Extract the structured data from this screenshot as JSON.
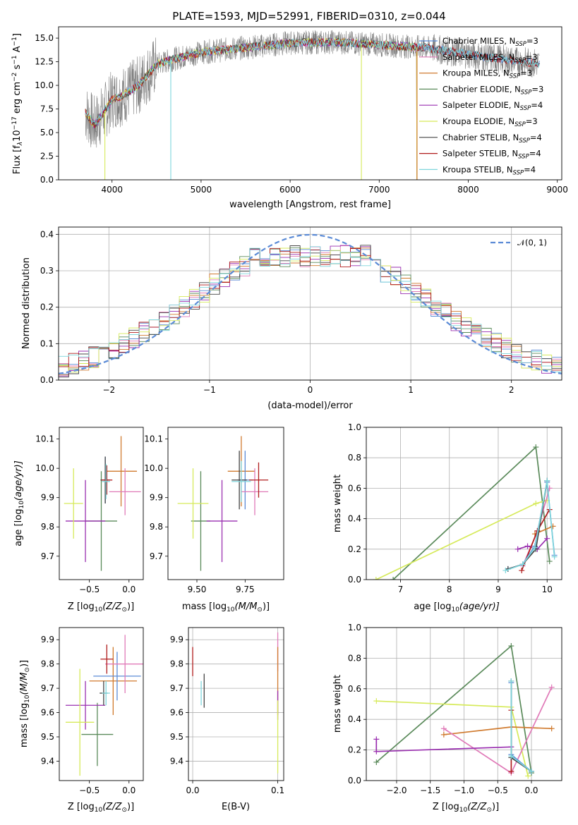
{
  "figure_title": "PLATE=1593, MJD=52991, FIBERID=0310, z=0.044",
  "colors": {
    "chabrier_miles": "#5b8bd6",
    "salpeter_miles": "#e07ab8",
    "kroupa_miles": "#d07a2e",
    "chabrier_elodie": "#5a8a5a",
    "salpeter_elodie": "#9a2fb0",
    "kroupa_elodie": "#d6ea5a",
    "chabrier_stelib": "#444444",
    "salpeter_stelib": "#b01c1c",
    "kroupa_stelib": "#7fd6dc",
    "data_grey": "#808080",
    "gauss": "#5b8bd6"
  },
  "chart_data": [
    {
      "id": "spectrum",
      "type": "line",
      "ylabel_main": "Flux [f",
      "ylabel_sub": "λ",
      "ylabel_mid": "10",
      "ylabel_sup1": "−17",
      "ylabel_rest": " erg cm",
      "ylabel_sup2": "−2",
      "ylabel_s": " s",
      "ylabel_sup3": "−1",
      "ylabel_a": " A",
      "ylabel_sup4": "−1",
      "ylabel_end": "]",
      "xlabel": "wavelength [Angstrom, rest frame]",
      "xlim": [
        3400,
        9050
      ],
      "ylim": [
        0,
        16.2
      ],
      "xticks": [
        "4000",
        "5000",
        "6000",
        "7000",
        "8000",
        "9000"
      ],
      "xtick_values": [
        4000,
        5000,
        6000,
        7000,
        8000,
        9000
      ],
      "yticks": [
        "0.0",
        "2.5",
        "5.0",
        "7.5",
        "10.0",
        "12.5",
        "15.0"
      ],
      "ytick_values": [
        0,
        2.5,
        5,
        7.5,
        10,
        12.5,
        15
      ],
      "continuum": [
        [
          3700,
          7.2
        ],
        [
          3800,
          5.8
        ],
        [
          3900,
          7.0
        ],
        [
          4000,
          8.5
        ],
        [
          4100,
          8.8
        ],
        [
          4300,
          10.0
        ],
        [
          4500,
          12.2
        ],
        [
          4700,
          12.8
        ],
        [
          5000,
          13.5
        ],
        [
          5500,
          14.0
        ],
        [
          6000,
          14.5
        ],
        [
          6500,
          14.6
        ],
        [
          7000,
          14.3
        ],
        [
          7500,
          14.0
        ],
        [
          7800,
          13.6
        ],
        [
          8200,
          13.0
        ],
        [
          8500,
          12.6
        ],
        [
          8800,
          12.3
        ]
      ],
      "series": [
        {
          "name": "Chabrier MILES, N",
          "sub": "SSP",
          "suffix": "=3",
          "key": "chabrier_miles"
        },
        {
          "name": "Salpeter MILES, N",
          "sub": "SSP",
          "suffix": "=3",
          "key": "salpeter_miles"
        },
        {
          "name": "Kroupa MILES, N",
          "sub": "SSP",
          "suffix": "=3",
          "key": "kroupa_miles"
        },
        {
          "name": "Chabrier ELODIE, N",
          "sub": "SSP",
          "suffix": "=3",
          "key": "chabrier_elodie"
        },
        {
          "name": "Salpeter ELODIE, N",
          "sub": "SSP",
          "suffix": "=4",
          "key": "salpeter_elodie"
        },
        {
          "name": "Kroupa ELODIE, N",
          "sub": "SSP",
          "suffix": "=3",
          "key": "kroupa_elodie"
        },
        {
          "name": "Chabrier STELIB, N",
          "sub": "SSP",
          "suffix": "=4",
          "key": "chabrier_stelib"
        },
        {
          "name": "Salpeter STELIB, N",
          "sub": "SSP",
          "suffix": "=4",
          "key": "salpeter_stelib"
        },
        {
          "name": "Kroupa STELIB, N",
          "sub": "SSP",
          "suffix": "=4",
          "key": "kroupa_stelib"
        }
      ],
      "legend_position": "upper-right"
    },
    {
      "id": "residuals",
      "type": "step-histogram",
      "xlabel": "(data-model)/error",
      "ylabel": "Normed distribution",
      "xlim": [
        -2.5,
        2.5
      ],
      "ylim": [
        0,
        0.42
      ],
      "xticks": [
        "−2",
        "−1",
        "0",
        "1",
        "2"
      ],
      "xtick_values": [
        -2,
        -1,
        0,
        1,
        2
      ],
      "yticks": [
        "0.0",
        "0.1",
        "0.2",
        "0.3",
        "0.4"
      ],
      "ytick_values": [
        0,
        0.1,
        0.2,
        0.3,
        0.4
      ],
      "bin_width": 0.1,
      "bin_start": -2.5,
      "grid": true,
      "legend_label": "𝒩(0, 1)",
      "legend_position": "upper-right"
    },
    {
      "id": "age_vs_Z",
      "type": "errorbar",
      "xlabel": "Z [log",
      "xlabel_sub": "10",
      "xlabel_rest": "(Z/Z",
      "xlabel_sub2": "⊙",
      "xlabel_end": ")]",
      "ylabel": "age  [log",
      "ylabel_sub": "10",
      "ylabel_rest": "(age/yr)]",
      "xlim": [
        -0.88,
        0.18
      ],
      "ylim": [
        9.62,
        10.14
      ],
      "xticks": [
        "−0.5",
        "0.0"
      ],
      "xtick_values": [
        -0.5,
        0
      ],
      "yticks": [
        "9.7",
        "9.8",
        "9.9",
        "10.0",
        "10.1"
      ],
      "ytick_values": [
        9.7,
        9.8,
        9.9,
        10.0,
        10.1
      ],
      "points": [
        {
          "key": "kroupa_miles",
          "x": -0.1,
          "y": 9.99,
          "xerr": 0.2,
          "yerr": 0.12
        },
        {
          "key": "chabrier_miles",
          "x": -0.3,
          "y": 9.96,
          "xerr": 0.05,
          "yerr": 0.08
        },
        {
          "key": "salpeter_miles",
          "x": -0.05,
          "y": 9.92,
          "xerr": 0.2,
          "yerr": 0.08
        },
        {
          "key": "chabrier_elodie",
          "x": -0.35,
          "y": 9.82,
          "xerr": 0.2,
          "yerr": 0.17
        },
        {
          "key": "salpeter_elodie",
          "x": -0.55,
          "y": 9.82,
          "xerr": 0.25,
          "yerr": 0.14
        },
        {
          "key": "kroupa_elodie",
          "x": -0.7,
          "y": 9.88,
          "xerr": 0.12,
          "yerr": 0.12
        },
        {
          "key": "chabrier_stelib",
          "x": -0.3,
          "y": 9.96,
          "xerr": 0.06,
          "yerr": 0.08
        },
        {
          "key": "salpeter_stelib",
          "x": -0.28,
          "y": 9.96,
          "xerr": 0.07,
          "yerr": 0.05
        },
        {
          "key": "kroupa_stelib",
          "x": -0.29,
          "y": 9.955,
          "xerr": 0.05,
          "yerr": 0.06
        }
      ]
    },
    {
      "id": "age_vs_mass",
      "type": "errorbar",
      "xlabel": "mass [log",
      "xlabel_sub": "10",
      "xlabel_rest": "(M/M",
      "xlabel_sub2": "⊙",
      "xlabel_end": ")]",
      "xlim": [
        9.35,
        9.95
      ],
      "ylim": [
        9.62,
        10.14
      ],
      "xticks": [
        "9.50",
        "9.75"
      ],
      "xtick_values": [
        9.5,
        9.75
      ],
      "yticks": [
        "9.7",
        "9.8",
        "9.9",
        "10.0",
        "10.1"
      ],
      "ytick_values": [
        9.7,
        9.8,
        9.9,
        10.0,
        10.1
      ],
      "points": [
        {
          "key": "kroupa_miles",
          "x": 9.73,
          "y": 9.99,
          "xerr": 0.07,
          "yerr": 0.12
        },
        {
          "key": "chabrier_miles",
          "x": 9.75,
          "y": 9.96,
          "xerr": 0.04,
          "yerr": 0.1
        },
        {
          "key": "salpeter_miles",
          "x": 9.8,
          "y": 9.92,
          "xerr": 0.07,
          "yerr": 0.08
        },
        {
          "key": "chabrier_elodie",
          "x": 9.52,
          "y": 9.82,
          "xerr": 0.05,
          "yerr": 0.17
        },
        {
          "key": "salpeter_elodie",
          "x": 9.63,
          "y": 9.82,
          "xerr": 0.08,
          "yerr": 0.14
        },
        {
          "key": "kroupa_elodie",
          "x": 9.48,
          "y": 9.88,
          "xerr": 0.08,
          "yerr": 0.12
        },
        {
          "key": "chabrier_stelib",
          "x": 9.72,
          "y": 9.96,
          "xerr": 0.04,
          "yerr": 0.1
        },
        {
          "key": "salpeter_stelib",
          "x": 9.82,
          "y": 9.96,
          "xerr": 0.05,
          "yerr": 0.06
        },
        {
          "key": "kroupa_stelib",
          "x": 9.73,
          "y": 9.955,
          "xerr": 0.05,
          "yerr": 0.07
        }
      ]
    },
    {
      "id": "weight_vs_age",
      "type": "line",
      "xlabel": "age  [log",
      "xlabel_sub": "10",
      "xlabel_rest": "(age/yr)]",
      "ylabel": "mass weight",
      "xlim": [
        6.3,
        10.3
      ],
      "ylim": [
        0,
        1.0
      ],
      "xticks": [
        "7",
        "8",
        "9",
        "10"
      ],
      "xtick_values": [
        7,
        8,
        9,
        10
      ],
      "yticks": [
        "0.0",
        "0.2",
        "0.4",
        "0.6",
        "0.8",
        "1.0"
      ],
      "ytick_values": [
        0,
        0.2,
        0.4,
        0.6,
        0.8,
        1.0
      ],
      "grid": true,
      "series": [
        {
          "key": "chabrier_elodie",
          "x": [
            6.85,
            9.77,
            10.05
          ],
          "y": [
            0.0,
            0.87,
            0.12
          ]
        },
        {
          "key": "kroupa_elodie",
          "x": [
            6.5,
            9.77,
            10.0
          ],
          "y": [
            0.0,
            0.5,
            0.52
          ]
        },
        {
          "key": "salpeter_miles",
          "x": [
            9.5,
            9.78,
            10.05
          ],
          "y": [
            0.09,
            0.3,
            0.6
          ]
        },
        {
          "key": "kroupa_miles",
          "x": [
            9.75,
            10.12
          ],
          "y": [
            0.3,
            0.35
          ]
        },
        {
          "key": "salpeter_elodie",
          "x": [
            9.4,
            9.6,
            9.8,
            10.0
          ],
          "y": [
            0.2,
            0.22,
            0.2,
            0.27
          ]
        },
        {
          "key": "salpeter_stelib",
          "x": [
            9.48,
            9.8,
            10.05
          ],
          "y": [
            0.06,
            0.32,
            0.46
          ]
        },
        {
          "key": "chabrier_miles",
          "x": [
            9.2,
            9.5,
            9.75,
            10.0,
            10.15
          ],
          "y": [
            0.07,
            0.1,
            0.22,
            0.64,
            0.16
          ]
        },
        {
          "key": "chabrier_stelib",
          "x": [
            9.2,
            9.5,
            9.77,
            10.0
          ],
          "y": [
            0.07,
            0.1,
            0.2,
            0.65
          ]
        },
        {
          "key": "kroupa_stelib",
          "x": [
            9.15,
            9.5,
            9.75,
            10.0,
            10.15
          ],
          "y": [
            0.06,
            0.1,
            0.21,
            0.65,
            0.15
          ]
        }
      ]
    },
    {
      "id": "mass_vs_Z",
      "type": "errorbar",
      "xlabel": "Z [log",
      "xlabel_sub": "10",
      "xlabel_rest": "(Z/Z",
      "xlabel_sub2": "⊙",
      "xlabel_end": ")]",
      "ylabel": "mass [log",
      "ylabel_sub": "10",
      "ylabel_rest": "(M/M",
      "ylabel_sub2": "⊙",
      "ylabel_end": ")]",
      "xlim": [
        -0.88,
        0.18
      ],
      "ylim": [
        9.32,
        9.95
      ],
      "xticks": [
        "−0.5",
        "0.0"
      ],
      "xtick_values": [
        -0.5,
        0
      ],
      "yticks": [
        "9.4",
        "9.5",
        "9.6",
        "9.7",
        "9.8",
        "9.9"
      ],
      "ytick_values": [
        9.4,
        9.5,
        9.6,
        9.7,
        9.8,
        9.9
      ],
      "points": [
        {
          "key": "kroupa_miles",
          "x": -0.2,
          "y": 9.73,
          "xerr": 0.3,
          "yerr": 0.14
        },
        {
          "key": "chabrier_miles",
          "x": -0.15,
          "y": 9.75,
          "xerr": 0.3,
          "yerr": 0.1
        },
        {
          "key": "salpeter_miles",
          "x": -0.05,
          "y": 9.8,
          "xerr": 0.25,
          "yerr": 0.12
        },
        {
          "key": "chabrier_elodie",
          "x": -0.4,
          "y": 9.51,
          "xerr": 0.2,
          "yerr": 0.13
        },
        {
          "key": "salpeter_elodie",
          "x": -0.55,
          "y": 9.63,
          "xerr": 0.25,
          "yerr": 0.1
        },
        {
          "key": "kroupa_elodie",
          "x": -0.62,
          "y": 9.56,
          "xerr": 0.18,
          "yerr": 0.22
        },
        {
          "key": "chabrier_stelib",
          "x": -0.32,
          "y": 9.68,
          "xerr": 0.05,
          "yerr": 0.05
        },
        {
          "key": "salpeter_stelib",
          "x": -0.28,
          "y": 9.82,
          "xerr": 0.08,
          "yerr": 0.06
        },
        {
          "key": "kroupa_stelib",
          "x": -0.29,
          "y": 9.68,
          "xerr": 0.05,
          "yerr": 0.05
        }
      ]
    },
    {
      "id": "mass_vs_ebv",
      "type": "errorbar",
      "xlabel": "E(B-V)",
      "xlim": [
        -0.005,
        0.107
      ],
      "ylim": [
        9.32,
        9.95
      ],
      "xticks": [
        "0.0",
        "0.1"
      ],
      "xtick_values": [
        0,
        0.1
      ],
      "yticks": [
        "9.4",
        "9.5",
        "9.6",
        "9.7",
        "9.8",
        "9.9"
      ],
      "ytick_values": [
        9.4,
        9.5,
        9.6,
        9.7,
        9.8,
        9.9
      ],
      "grid": true,
      "points": [
        {
          "key": "salpeter_stelib",
          "x": 0.0,
          "y": 9.81,
          "xerr": 0,
          "yerr": 0.06
        },
        {
          "key": "kroupa_stelib",
          "x": 0.01,
          "y": 9.68,
          "xerr": 0,
          "yerr": 0.05
        },
        {
          "key": "chabrier_stelib",
          "x": 0.0135,
          "y": 9.69,
          "xerr": 0,
          "yerr": 0.07
        },
        {
          "key": "salpeter_miles",
          "x": 0.1,
          "y": 9.85,
          "xerr": 0,
          "yerr": 0.08
        },
        {
          "key": "kroupa_miles",
          "x": 0.1,
          "y": 9.73,
          "xerr": 0,
          "yerr": 0.14
        },
        {
          "key": "salpeter_elodie",
          "x": 0.1,
          "y": 9.63,
          "xerr": 0,
          "yerr": 0.06
        },
        {
          "key": "kroupa_elodie",
          "x": 0.1,
          "y": 9.5,
          "xerr": 0,
          "yerr": 0.15
        }
      ]
    },
    {
      "id": "weight_vs_Z",
      "type": "line",
      "xlabel": "Z [log",
      "xlabel_sub": "10",
      "xlabel_rest": "(Z/Z",
      "xlabel_sub2": "⊙",
      "xlabel_end": ")]",
      "ylabel": "mass weight",
      "xlim": [
        -2.45,
        0.45
      ],
      "ylim": [
        0,
        1.0
      ],
      "xticks": [
        "−2.0",
        "−1.5",
        "−1.0",
        "−0.5",
        "0.0"
      ],
      "xtick_values": [
        -2,
        -1.5,
        -1,
        -0.5,
        0
      ],
      "yticks": [
        "0.0",
        "0.2",
        "0.4",
        "0.6",
        "0.8",
        "1.0"
      ],
      "ytick_values": [
        0,
        0.2,
        0.4,
        0.6,
        0.8,
        1.0
      ],
      "grid": true,
      "series": [
        {
          "key": "chabrier_elodie",
          "x": [
            -2.3,
            -0.3,
            0.0
          ],
          "y": [
            0.12,
            0.88,
            0.05
          ]
        },
        {
          "key": "kroupa_elodie",
          "x": [
            -2.3,
            -0.3,
            -0.05
          ],
          "y": [
            0.52,
            0.48,
            0.03
          ]
        },
        {
          "key": "kroupa_miles",
          "x": [
            -1.3,
            -0.3,
            0.3
          ],
          "y": [
            0.3,
            0.35,
            0.34
          ]
        },
        {
          "key": "salpeter_miles",
          "x": [
            -1.3,
            -0.3,
            0.3
          ],
          "y": [
            0.34,
            0.05,
            0.61
          ]
        },
        {
          "key": "salpeter_elodie",
          "x": [
            -2.3,
            -2.3,
            -0.3
          ],
          "y": [
            0.27,
            0.19,
            0.22
          ]
        },
        {
          "key": "salpeter_stelib",
          "x": [
            -0.3,
            -0.3
          ],
          "y": [
            0.06,
            0.46
          ]
        },
        {
          "key": "chabrier_miles",
          "x": [
            -0.3,
            -0.3,
            0.0
          ],
          "y": [
            0.64,
            0.17,
            0.06
          ]
        },
        {
          "key": "chabrier_stelib",
          "x": [
            -0.3,
            -0.3,
            0.0
          ],
          "y": [
            0.65,
            0.15,
            0.06
          ]
        },
        {
          "key": "kroupa_stelib",
          "x": [
            -0.3,
            -0.3,
            0.0
          ],
          "y": [
            0.65,
            0.16,
            0.06
          ]
        }
      ]
    }
  ]
}
